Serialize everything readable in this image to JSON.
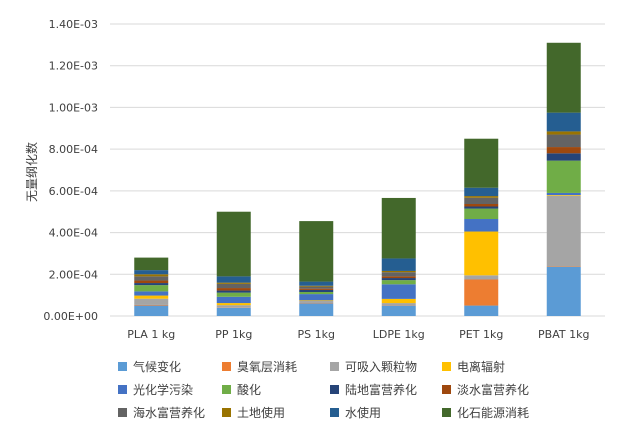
{
  "chart_data": {
    "type": "bar",
    "stacked": true,
    "ylabel": "无量纲化数",
    "ylim": [
      0,
      0.0014
    ],
    "y_ticks": [
      "0.00E+00",
      "2.00E-04",
      "4.00E-04",
      "6.00E-04",
      "8.00E-04",
      "1.00E-03",
      "1.20E-03",
      "1.40E-03"
    ],
    "categories": [
      "PLA 1 kg",
      "PP 1kg",
      "PS 1kg",
      "LDPE 1kg",
      "PET 1kg",
      "PBAT 1kg"
    ],
    "series": [
      {
        "name": "气候变化",
        "color": "#5B9BD5",
        "values": [
          5e-05,
          4e-05,
          6e-05,
          5e-05,
          5e-05,
          0.000235
        ]
      },
      {
        "name": "臭氧层消耗",
        "color": "#ED7D31",
        "values": [
          3e-06,
          2e-06,
          2e-06,
          2e-06,
          0.000125,
          2e-06
        ]
      },
      {
        "name": "可吸入颗粒物",
        "color": "#A5A5A5",
        "values": [
          3e-05,
          1e-05,
          1e-05,
          1e-05,
          2e-05,
          0.00034
        ]
      },
      {
        "name": "电离辐射",
        "color": "#FFC000",
        "values": [
          1.5e-05,
          1e-05,
          3e-06,
          2e-05,
          0.00021,
          3e-06
        ]
      },
      {
        "name": "光化学污染",
        "color": "#4472C4",
        "values": [
          2e-05,
          3e-05,
          3e-05,
          7e-05,
          6e-05,
          1e-05
        ]
      },
      {
        "name": "酸化",
        "color": "#70AD47",
        "values": [
          3e-05,
          2e-05,
          1e-05,
          2e-05,
          5e-05,
          0.000155
        ]
      },
      {
        "name": "陆地富营养化",
        "color": "#264478",
        "values": [
          1e-05,
          1e-05,
          1e-05,
          1e-05,
          1e-05,
          3.5e-05
        ]
      },
      {
        "name": "淡水富营养化",
        "color": "#9E480E",
        "values": [
          1.2e-05,
          1.2e-05,
          6e-06,
          8e-06,
          1.2e-05,
          3e-05
        ]
      },
      {
        "name": "海水富营养化",
        "color": "#636363",
        "values": [
          2e-05,
          2e-05,
          1e-05,
          2e-05,
          3e-05,
          6e-05
        ]
      },
      {
        "name": "土地使用",
        "color": "#997300",
        "values": [
          1e-05,
          6e-06,
          4e-06,
          6e-06,
          8e-06,
          1.5e-05
        ]
      },
      {
        "name": "水使用",
        "color": "#255E91",
        "values": [
          2e-05,
          3e-05,
          2e-05,
          6e-05,
          4e-05,
          9e-05
        ]
      },
      {
        "name": "化石能源消耗",
        "color": "#43682B",
        "values": [
          6e-05,
          0.00031,
          0.00029,
          0.00029,
          0.000235,
          0.000335
        ]
      }
    ]
  }
}
